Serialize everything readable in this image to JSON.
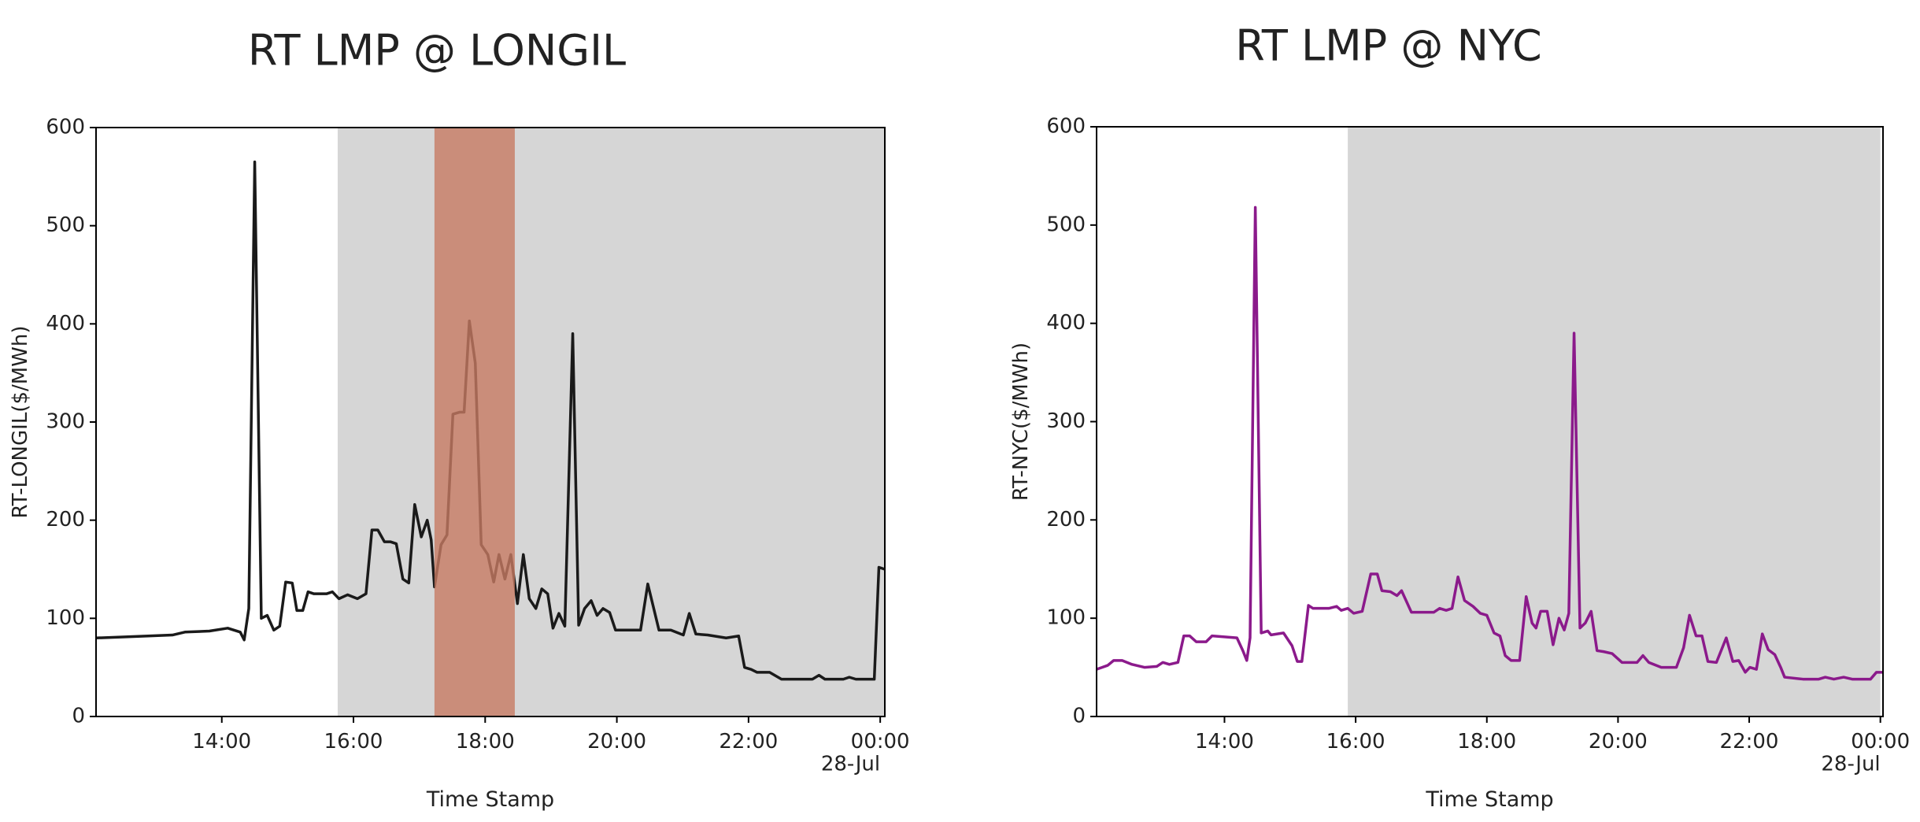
{
  "chart_data": [
    {
      "type": "line",
      "title": "RT LMP @ LONGIL",
      "x_label": "Time Stamp",
      "y_label": "RT-LONGIL($/MWh)",
      "color": "#1a1a1a",
      "x": [
        12.09,
        12.5,
        12.88,
        13.25,
        13.44,
        13.81,
        14.09,
        14.28,
        14.34,
        14.41,
        14.5,
        14.6,
        14.69,
        14.79,
        14.88,
        14.97,
        15.07,
        15.14,
        15.23,
        15.31,
        15.4,
        15.59,
        15.68,
        15.78,
        15.91,
        16.06,
        16.19,
        16.28,
        16.37,
        16.47,
        16.56,
        16.65,
        16.75,
        16.84,
        16.93,
        17.03,
        17.12,
        17.18,
        17.23,
        17.33,
        17.42,
        17.51,
        17.61,
        17.68,
        17.76,
        17.85,
        17.94,
        18.04,
        18.13,
        18.21,
        18.3,
        18.39,
        18.49,
        18.58,
        18.67,
        18.77,
        18.86,
        18.95,
        19.03,
        19.12,
        19.21,
        19.33,
        19.42,
        19.51,
        19.61,
        19.7,
        19.79,
        19.89,
        19.98,
        20.17,
        20.36,
        20.47,
        20.64,
        20.82,
        21.01,
        21.1,
        21.2,
        21.38,
        21.66,
        21.85,
        21.94,
        22.04,
        22.13,
        22.32,
        22.5,
        22.97,
        23.07,
        23.16,
        23.44,
        23.53,
        23.63,
        23.91,
        23.98,
        24.07
      ],
      "values": [
        80,
        81,
        82,
        83,
        86,
        87,
        90,
        86,
        78,
        110,
        565,
        100,
        103,
        88,
        92,
        137,
        136,
        108,
        108,
        127,
        125,
        125,
        127,
        120,
        124,
        120,
        125,
        190,
        190,
        178,
        178,
        176,
        140,
        136,
        216,
        183,
        200,
        180,
        132,
        175,
        185,
        308,
        310,
        310,
        403,
        360,
        175,
        165,
        137,
        165,
        140,
        165,
        115,
        165,
        120,
        110,
        130,
        125,
        90,
        105,
        92,
        390,
        93,
        110,
        118,
        103,
        110,
        106,
        88,
        88,
        88,
        135,
        88,
        88,
        83,
        105,
        84,
        83,
        80,
        82,
        50,
        48,
        45,
        45,
        38,
        38,
        42,
        38,
        38,
        40,
        38,
        38,
        152,
        150
      ],
      "xlim": [
        12.09,
        24.07
      ],
      "ylim": [
        0,
        600
      ],
      "yticks": [
        0,
        100,
        200,
        300,
        400,
        500,
        600
      ],
      "xticks": [
        {
          "value": 14,
          "label": "14:00"
        },
        {
          "value": 16,
          "label": "16:00"
        },
        {
          "value": 18,
          "label": "18:00"
        },
        {
          "value": 20,
          "label": "20:00"
        },
        {
          "value": 22,
          "label": "22:00"
        },
        {
          "value": 24,
          "label": "00:00\n28-Jul"
        }
      ],
      "spans": [
        {
          "start": 15.76,
          "end": 24.07,
          "color": "#d6d6d6"
        },
        {
          "start": 17.23,
          "end": 18.45,
          "color": "#c77a63"
        }
      ]
    },
    {
      "type": "line",
      "title": "RT LMP @ NYC",
      "x_label": "Time Stamp",
      "y_label": "RT-NYC($/MWh)",
      "color": "#8b1a8b",
      "x": [
        12.05,
        12.22,
        12.31,
        12.44,
        12.59,
        12.78,
        12.97,
        13.06,
        13.16,
        13.29,
        13.38,
        13.47,
        13.57,
        13.72,
        13.81,
        14.0,
        14.19,
        14.28,
        14.34,
        14.39,
        14.47,
        14.56,
        14.66,
        14.71,
        14.9,
        15.03,
        15.11,
        15.18,
        15.28,
        15.35,
        15.59,
        15.71,
        15.78,
        15.88,
        15.97,
        16.1,
        16.23,
        16.33,
        16.4,
        16.53,
        16.63,
        16.7,
        16.85,
        17.19,
        17.28,
        17.38,
        17.47,
        17.56,
        17.66,
        17.79,
        17.9,
        18.0,
        18.11,
        18.2,
        18.28,
        18.37,
        18.5,
        18.6,
        18.69,
        18.75,
        18.82,
        18.92,
        19.01,
        19.1,
        19.18,
        19.25,
        19.33,
        19.42,
        19.5,
        19.59,
        19.68,
        19.78,
        19.91,
        20.06,
        20.29,
        20.38,
        20.47,
        20.66,
        20.89,
        21.0,
        21.09,
        21.19,
        21.28,
        21.37,
        21.5,
        21.65,
        21.75,
        21.84,
        21.94,
        22.01,
        22.11,
        22.2,
        22.29,
        22.39,
        22.48,
        22.54,
        22.82,
        23.06,
        23.16,
        23.29,
        23.44,
        23.57,
        23.85,
        23.94,
        24.04
      ],
      "values": [
        48,
        52,
        57,
        57,
        53,
        50,
        51,
        55,
        53,
        55,
        82,
        82,
        76,
        76,
        82,
        81,
        80,
        67,
        57,
        80,
        518,
        85,
        87,
        83,
        85,
        72,
        56,
        56,
        113,
        110,
        110,
        112,
        108,
        110,
        105,
        107,
        145,
        145,
        128,
        127,
        123,
        128,
        106,
        106,
        110,
        108,
        110,
        142,
        118,
        112,
        105,
        103,
        85,
        82,
        62,
        57,
        57,
        122,
        95,
        90,
        107,
        107,
        73,
        100,
        88,
        105,
        390,
        90,
        95,
        107,
        67,
        66,
        64,
        55,
        55,
        62,
        55,
        50,
        50,
        70,
        103,
        82,
        82,
        56,
        55,
        80,
        56,
        57,
        45,
        50,
        48,
        84,
        68,
        63,
        50,
        40,
        38,
        38,
        40,
        38,
        40,
        38,
        38,
        45,
        45
      ],
      "xlim": [
        12.05,
        24.04
      ],
      "ylim": [
        0,
        600
      ],
      "yticks": [
        0,
        100,
        200,
        300,
        400,
        500,
        600
      ],
      "xticks": [
        {
          "value": 14,
          "label": "14:00"
        },
        {
          "value": 16,
          "label": "16:00"
        },
        {
          "value": 18,
          "label": "18:00"
        },
        {
          "value": 20,
          "label": "20:00"
        },
        {
          "value": 22,
          "label": "22:00"
        },
        {
          "value": 24,
          "label": "00:00\n28-Jul"
        }
      ],
      "spans": [
        {
          "start": 15.88,
          "end": 24.0,
          "color": "#d6d6d6"
        }
      ]
    }
  ]
}
